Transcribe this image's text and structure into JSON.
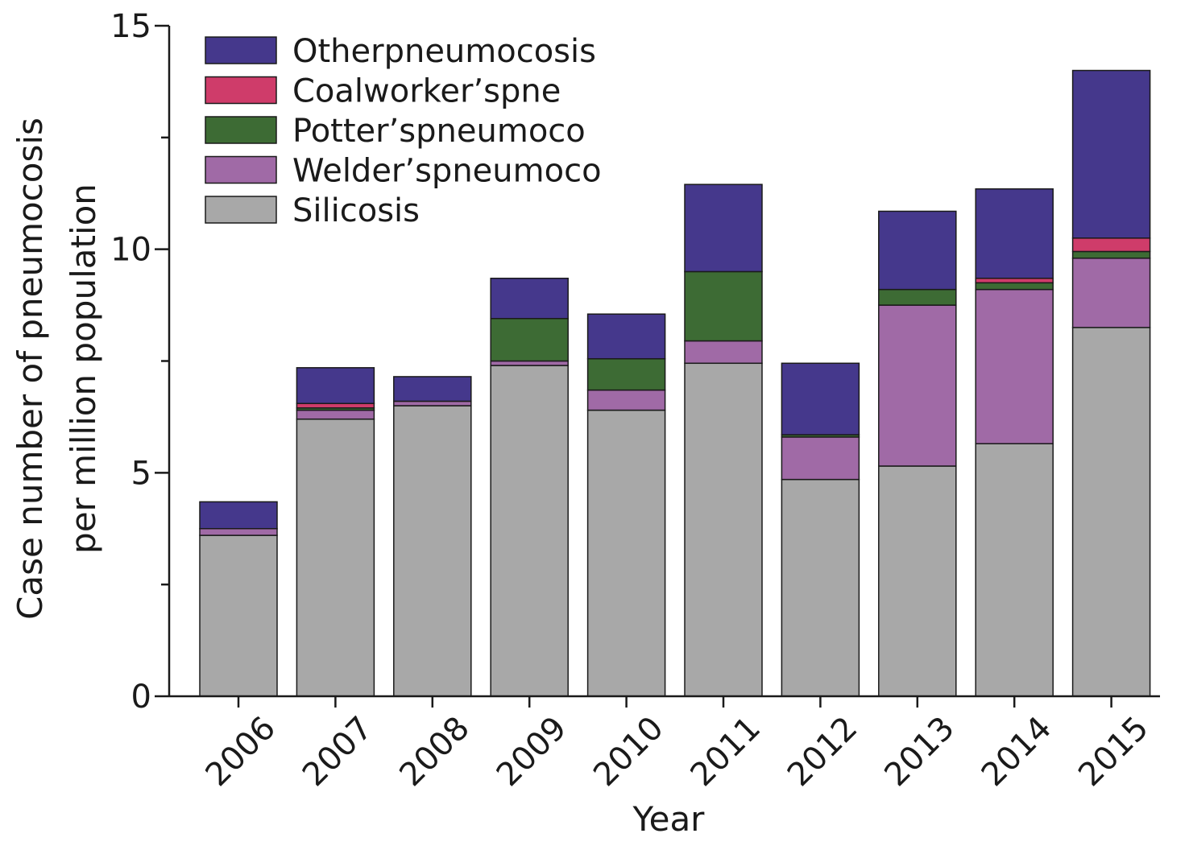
{
  "chart_data": {
    "type": "bar",
    "stacked": true,
    "categories": [
      "2006",
      "2007",
      "2008",
      "2009",
      "2010",
      "2011",
      "2012",
      "2013",
      "2014",
      "2015"
    ],
    "series": [
      {
        "name": "Silicosis",
        "color": "#a8a8a8",
        "values": [
          3.6,
          6.2,
          6.5,
          7.4,
          6.4,
          7.45,
          4.85,
          5.15,
          5.65,
          8.25
        ]
      },
      {
        "name": "Welder’spneumoco",
        "color": "#a06aa6",
        "values": [
          0.15,
          0.2,
          0.1,
          0.1,
          0.45,
          0.5,
          0.95,
          3.6,
          3.45,
          1.55
        ]
      },
      {
        "name": "Potter’spneumoco",
        "color": "#3d6b34",
        "values": [
          0.0,
          0.05,
          0.0,
          0.95,
          0.7,
          1.55,
          0.05,
          0.35,
          0.15,
          0.15
        ]
      },
      {
        "name": "Coalworker’spne",
        "color": "#cf3c6a",
        "values": [
          0.0,
          0.1,
          0.0,
          0.0,
          0.0,
          0.0,
          0.0,
          0.0,
          0.1,
          0.3
        ]
      },
      {
        "name": "Otherpneumocosis",
        "color": "#45388c",
        "values": [
          0.6,
          0.8,
          0.55,
          0.9,
          1.0,
          1.95,
          1.6,
          1.75,
          2.0,
          3.75
        ]
      }
    ],
    "legend_order": [
      "Otherpneumocosis",
      "Coalworker’spne",
      "Potter’spneumoco",
      "Welder’spneumoco",
      "Silicosis"
    ],
    "xlabel": "Year",
    "ylabel_lines": [
      "Case number of pneumocosis",
      "per million population"
    ],
    "ylim": [
      0,
      15
    ],
    "yticks_major": [
      0,
      5,
      10,
      15
    ],
    "yticks_minor": [
      2.5,
      7.5,
      12.5
    ],
    "grid": false,
    "legend_position": "top-left"
  }
}
